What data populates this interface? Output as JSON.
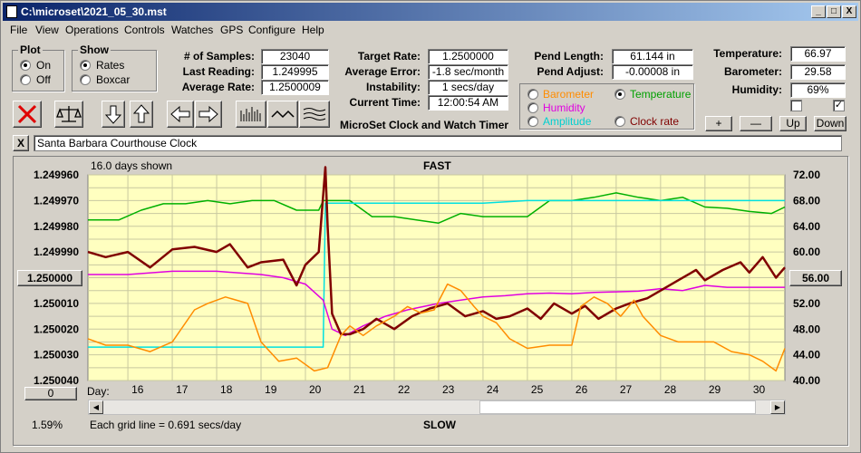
{
  "window": {
    "title": "C:\\microset\\2021_05_30.mst",
    "min": "_",
    "max": "□",
    "close": "X"
  },
  "menu": [
    "File",
    "View",
    "Operations",
    "Controls",
    "Watches",
    "GPS",
    "Configure",
    "Help"
  ],
  "plot": {
    "legend": "Plot",
    "on": "On",
    "off": "Off",
    "selected": "On"
  },
  "show": {
    "legend": "Show",
    "rates": "Rates",
    "boxcar": "Boxcar",
    "selected": "Rates"
  },
  "stats": {
    "samples_label": "# of Samples:",
    "samples": "23040",
    "last_label": "Last Reading:",
    "last": "1.249995",
    "avg_label": "Average Rate:",
    "avg": "1.2500009"
  },
  "rates": {
    "target_label": "Target Rate:",
    "target": "1.2500000",
    "error_label": "Average Error:",
    "error": "-1.8 sec/month",
    "instab_label": "Instability:",
    "instab": "1 secs/day",
    "time_label": "Current Time:",
    "time": "12:00:54 AM",
    "caption": "MicroSet Clock and Watch Timer"
  },
  "pend": {
    "length_label": "Pend Length:",
    "length": "61.144 in",
    "adjust_label": "Pend Adjust:",
    "adjust": "-0.00008 in"
  },
  "env": {
    "temp_label": "Temperature:",
    "temp": "66.97",
    "baro_label": "Barometer:",
    "baro": "29.58",
    "humid_label": "Humidity:",
    "humid": "69%",
    "check2": "✓"
  },
  "series_select": {
    "barometer": "Barometer",
    "temperature": "Temperature",
    "humidity": "Humidity",
    "amplitude": "Amplitude",
    "clock_rate": "Clock rate",
    "selected": "Temperature"
  },
  "steps": {
    "plus": "+",
    "minus": "—",
    "up": "Up",
    "down": "Down"
  },
  "clear_x": "X",
  "clock_name": "Santa Barbara Courthouse Clock",
  "colors": {
    "plot_bg": "#ffffc0",
    "clock_rate": "#800000",
    "temperature": "#00b000",
    "humidity": "#e000e0",
    "amplitude": "#00e0e0",
    "barometer": "#ff8c00"
  },
  "chart": {
    "days_shown": "16.0 days shown",
    "top": "FAST",
    "bottom": "SLOW",
    "grid_note": "Each grid line = 0.691 secs/day",
    "left_value": "1.250000",
    "right_value": "56.00",
    "zero": "0",
    "pct": "1.59%",
    "day_label": "Day:"
  },
  "chart_data": {
    "type": "line",
    "x_label": "Day",
    "x": [
      16,
      17,
      18,
      19,
      20,
      21,
      22,
      23,
      24,
      25,
      26,
      27,
      28,
      29,
      30
    ],
    "xlim": [
      15.1,
      30.8
    ],
    "left_axis": {
      "ticks": [
        "1.249960",
        "1.249970",
        "1.249980",
        "1.249990",
        "1.250000",
        "1.250010",
        "1.250020",
        "1.250030",
        "1.250040"
      ],
      "ylim": [
        1.24996,
        1.25004
      ],
      "inverted": true
    },
    "right_axis": {
      "ticks": [
        "72.00",
        "68.00",
        "64.00",
        "60.00",
        "56.00",
        "52.00",
        "48.00",
        "44.00",
        "40.00"
      ],
      "ylim": [
        40,
        72
      ]
    },
    "series": [
      {
        "name": "Temperature",
        "axis": "right",
        "x": [
          15.1,
          15.8,
          16.3,
          16.8,
          17.3,
          17.8,
          18.3,
          18.8,
          19.3,
          19.8,
          20.3,
          20.4,
          21.0,
          21.5,
          22.0,
          22.5,
          23.0,
          23.5,
          24.0,
          24.5,
          25.0,
          25.5,
          26.0,
          26.5,
          27.0,
          27.5,
          28.0,
          28.5,
          29.0,
          29.5,
          30.0,
          30.5,
          30.8
        ],
        "y": [
          65,
          65,
          66.5,
          67.5,
          67.5,
          68,
          67.5,
          68,
          68,
          66.5,
          66.5,
          68,
          68,
          65.5,
          65.5,
          65,
          64.5,
          66,
          65.5,
          65.5,
          65.5,
          68,
          68,
          68.5,
          69.2,
          68.5,
          68,
          68.5,
          67,
          66.8,
          66.3,
          66,
          67
        ]
      },
      {
        "name": "Amplitude",
        "axis": "left",
        "x": [
          15.1,
          16,
          17,
          18,
          19,
          19.5,
          20.2,
          20.4,
          20.45,
          21,
          22,
          23,
          24,
          25,
          26,
          27,
          28,
          29,
          30,
          30.8
        ],
        "y": [
          1.250027,
          1.250027,
          1.250027,
          1.250027,
          1.250027,
          1.250027,
          1.250027,
          1.250027,
          1.249971,
          1.249971,
          1.249971,
          1.249971,
          1.249971,
          1.24997,
          1.24997,
          1.24997,
          1.24997,
          1.24997,
          1.24997,
          1.24997
        ]
      },
      {
        "name": "Humidity",
        "axis": "right",
        "x": [
          15.1,
          16,
          17,
          18,
          19,
          19.5,
          20,
          20.4,
          20.6,
          20.9,
          21.3,
          21.8,
          22.3,
          23,
          23.5,
          24,
          24.5,
          25,
          25.5,
          26,
          26.5,
          27,
          27.5,
          28,
          28.5,
          29,
          29.5,
          30,
          30.8
        ],
        "y": [
          56.5,
          56.5,
          57,
          57,
          56.5,
          56,
          55,
          52.5,
          48,
          47,
          48.5,
          50,
          51,
          52,
          52.5,
          53,
          53.2,
          53.5,
          53.6,
          53.5,
          53.7,
          53.8,
          53.9,
          54.3,
          54,
          54.8,
          54.5,
          54.5,
          54.5
        ]
      },
      {
        "name": "Clock rate",
        "axis": "left",
        "x": [
          15.1,
          15.5,
          16,
          16.5,
          17,
          17.5,
          18,
          18.3,
          18.7,
          19,
          19.5,
          19.8,
          20,
          20.3,
          20.45,
          20.5,
          20.6,
          20.8,
          21,
          21.3,
          21.6,
          22,
          22.4,
          22.8,
          23.2,
          23.6,
          24,
          24.3,
          24.6,
          25,
          25.3,
          25.6,
          26,
          26.3,
          26.6,
          27,
          27.3,
          27.7,
          28,
          28.4,
          28.8,
          29,
          29.4,
          29.8,
          30,
          30.3,
          30.6,
          30.8
        ],
        "y": [
          1.24999,
          1.249992,
          1.24999,
          1.249996,
          1.249989,
          1.249988,
          1.24999,
          1.249987,
          1.249996,
          1.249994,
          1.249993,
          1.250003,
          1.249995,
          1.24999,
          1.249957,
          1.24998,
          1.250014,
          1.250022,
          1.250022,
          1.25002,
          1.250016,
          1.25002,
          1.250015,
          1.250012,
          1.25001,
          1.250015,
          1.250013,
          1.250016,
          1.250015,
          1.250012,
          1.250016,
          1.25001,
          1.250014,
          1.250011,
          1.250016,
          1.250012,
          1.25001,
          1.250008,
          1.250005,
          1.250001,
          1.249997,
          1.250001,
          1.249997,
          1.249994,
          1.249998,
          1.249992,
          1.25,
          1.249996
        ]
      },
      {
        "name": "Barometer",
        "axis": "right",
        "x": [
          15.1,
          15.5,
          16,
          16.5,
          17,
          17.5,
          17.8,
          18.2,
          18.7,
          19,
          19.4,
          19.8,
          20.2,
          20.5,
          20.8,
          21,
          21.3,
          21.6,
          22,
          22.3,
          22.6,
          22.9,
          23.2,
          23.5,
          23.8,
          24,
          24.3,
          24.6,
          25,
          25.5,
          26,
          26.2,
          26.5,
          26.8,
          27.1,
          27.4,
          27.6,
          28,
          28.4,
          28.8,
          29.2,
          29.6,
          30,
          30.3,
          30.6,
          30.8
        ],
        "y": [
          46.5,
          45.5,
          45.5,
          44.5,
          46,
          51,
          52,
          53,
          52,
          46,
          43,
          43.5,
          41.5,
          42,
          47,
          48.5,
          47,
          48.5,
          50,
          51.5,
          50.5,
          51,
          55,
          54,
          51.5,
          50,
          49,
          46.5,
          45,
          45.5,
          45.5,
          51.5,
          53,
          52,
          50,
          52.5,
          50,
          47,
          46,
          46,
          46,
          44.5,
          44,
          43,
          41.5,
          45
        ]
      }
    ]
  }
}
